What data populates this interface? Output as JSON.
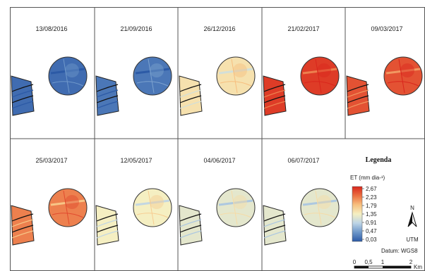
{
  "panels": [
    {
      "date": "13/08/2016",
      "level": 0.05
    },
    {
      "date": "21/09/2016",
      "level": 0.08
    },
    {
      "date": "26/12/2016",
      "level": 0.55
    },
    {
      "date": "21/02/2017",
      "level": 0.95
    },
    {
      "date": "09/03/2017",
      "level": 0.9
    },
    {
      "date": "25/03/2017",
      "level": 0.8
    },
    {
      "date": "12/05/2017",
      "level": 0.5
    },
    {
      "date": "04/06/2017",
      "level": 0.45
    },
    {
      "date": "06/07/2017",
      "level": 0.45
    }
  ],
  "legend": {
    "title": "Legenda",
    "unit_label": "ET (mm dia-¹)",
    "ticks": [
      "2,67",
      "2,23",
      "1,79",
      "1,35",
      "0,91",
      "0,47",
      "0,03"
    ],
    "colors": [
      "#2c5aa6",
      "#6d97c9",
      "#bdd4e6",
      "#f5efc2",
      "#f7c07f",
      "#ea7042",
      "#d9261c"
    ],
    "north_label": "N",
    "projection": "UTM",
    "datum": "Datum: WGS8",
    "scale_labels": [
      "0",
      "0,5",
      "1",
      "2"
    ],
    "scale_unit": "Km"
  }
}
